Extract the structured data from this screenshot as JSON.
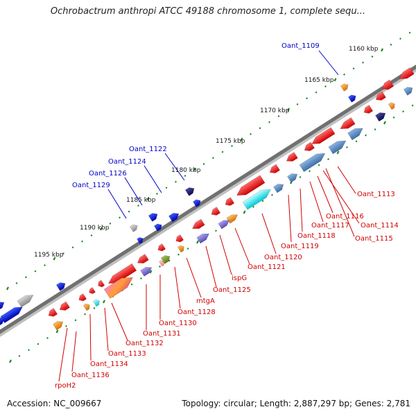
{
  "title": "Ochrobactrum anthropi ATCC 49188 chromosome 1, complete sequ...",
  "footer": {
    "accession": "Accession: NC_009667",
    "topology": "Topology: circular; Length: 2,887,297 bp; Genes: 2,781"
  },
  "colors": {
    "backbone": "#7a7a7a",
    "tick_dot": "#1a8a1a",
    "plus_label": "#0000c8",
    "minus_label": "#d00000"
  },
  "icons": {
    "gene_forward": "arrow-right-icon",
    "gene_reverse": "arrow-left-icon"
  },
  "ticks": [
    {
      "label": "1160 kbp"
    },
    {
      "label": "1165 kbp"
    },
    {
      "label": "1170 kbp"
    },
    {
      "label": "1175 kbp"
    },
    {
      "label": "1180 kbp"
    },
    {
      "label": "1185 kbp"
    },
    {
      "label": "1190 kbp"
    },
    {
      "label": "1195 kbp"
    }
  ],
  "plus_genes": [
    {
      "label": "Oant_1109"
    },
    {
      "label": "Oant_1122"
    },
    {
      "label": "Oant_1124"
    },
    {
      "label": "Oant_1126"
    },
    {
      "label": "Oant_1129"
    }
  ],
  "minus_genes": [
    {
      "label": "Oant_1113"
    },
    {
      "label": "Oant_1116"
    },
    {
      "label": "Oant_1114"
    },
    {
      "label": "Oant_1117"
    },
    {
      "label": "Oant_1115"
    },
    {
      "label": "Oant_1118"
    },
    {
      "label": "Oant_1119"
    },
    {
      "label": "Oant_1120"
    },
    {
      "label": "Oant_1121"
    },
    {
      "label": "ispG"
    },
    {
      "label": "Oant_1125"
    },
    {
      "label": "mtgA"
    },
    {
      "label": "Oant_1128"
    },
    {
      "label": "Oant_1130"
    },
    {
      "label": "Oant_1131"
    },
    {
      "label": "Oant_1132"
    },
    {
      "label": "Oant_1133"
    },
    {
      "label": "Oant_1134"
    },
    {
      "label": "Oant_1136"
    },
    {
      "label": "rpoH2"
    }
  ]
}
